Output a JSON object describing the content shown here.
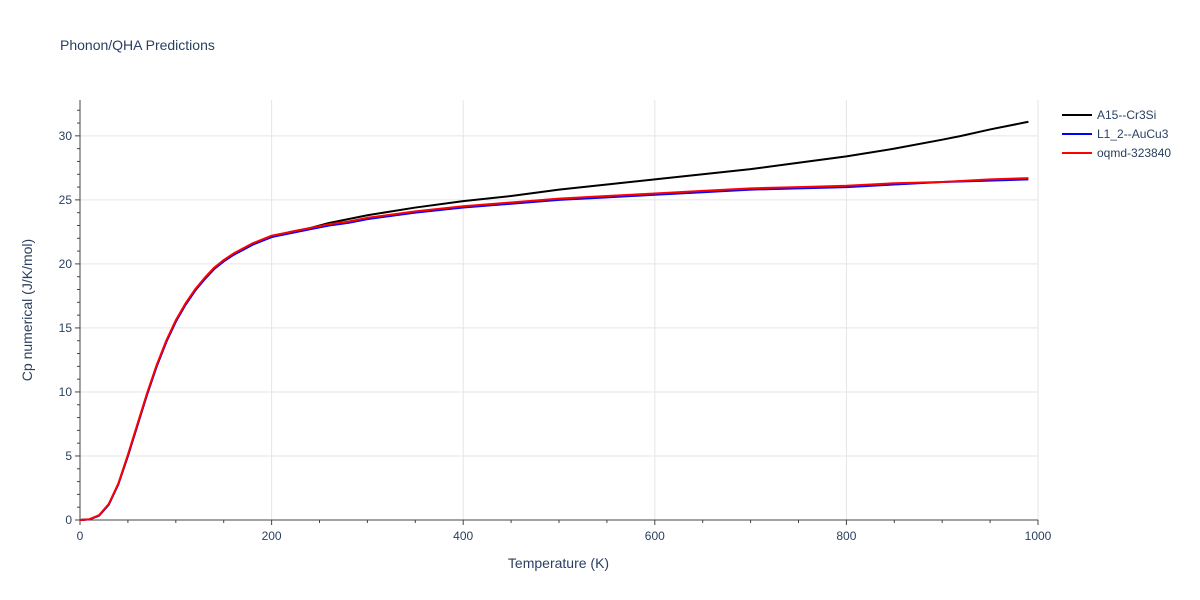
{
  "chart_data": {
    "type": "line",
    "title": "Phonon/QHA Predictions",
    "xlabel": "Temperature (K)",
    "ylabel": "Cp numerical (J/K/mol)",
    "xlim": [
      0,
      1000
    ],
    "ylim": [
      0,
      32.8
    ],
    "xticks": [
      0,
      200,
      400,
      600,
      800,
      1000
    ],
    "yticks": [
      0,
      5,
      10,
      15,
      20,
      25,
      30
    ],
    "grid": true,
    "legend_position": "top-right",
    "series": [
      {
        "name": "A15--Cr3Si",
        "color": "#000000",
        "x": [
          0,
          10,
          20,
          30,
          40,
          50,
          60,
          70,
          80,
          90,
          100,
          110,
          120,
          130,
          140,
          150,
          160,
          170,
          180,
          190,
          200,
          220,
          240,
          260,
          280,
          300,
          350,
          400,
          450,
          500,
          550,
          600,
          650,
          700,
          750,
          800,
          850,
          900,
          920,
          950,
          990
        ],
        "y": [
          0,
          0.05,
          0.35,
          1.2,
          2.8,
          5.0,
          7.4,
          9.8,
          12.0,
          13.9,
          15.5,
          16.8,
          17.9,
          18.8,
          19.6,
          20.2,
          20.7,
          21.1,
          21.5,
          21.8,
          22.1,
          22.5,
          22.8,
          23.2,
          23.5,
          23.8,
          24.4,
          24.9,
          25.3,
          25.8,
          26.2,
          26.6,
          27.0,
          27.4,
          27.9,
          28.4,
          29.0,
          29.7,
          30.0,
          30.5,
          31.1
        ]
      },
      {
        "name": "L1_2--AuCu3",
        "color": "#0000ff",
        "x": [
          0,
          10,
          20,
          30,
          40,
          50,
          60,
          70,
          80,
          90,
          100,
          110,
          120,
          130,
          140,
          150,
          160,
          170,
          180,
          190,
          200,
          220,
          240,
          260,
          280,
          300,
          350,
          400,
          450,
          500,
          550,
          600,
          650,
          700,
          750,
          800,
          850,
          900,
          950,
          990
        ],
        "y": [
          0,
          0.05,
          0.35,
          1.2,
          2.8,
          5.0,
          7.4,
          9.8,
          12.0,
          13.9,
          15.5,
          16.8,
          17.9,
          18.8,
          19.6,
          20.2,
          20.7,
          21.1,
          21.5,
          21.8,
          22.1,
          22.4,
          22.7,
          23.0,
          23.2,
          23.5,
          24.0,
          24.4,
          24.7,
          25.0,
          25.2,
          25.4,
          25.6,
          25.8,
          25.9,
          26.0,
          26.2,
          26.4,
          26.5,
          26.6
        ]
      },
      {
        "name": "oqmd-323840",
        "color": "#ff0000",
        "x": [
          0,
          10,
          20,
          30,
          40,
          50,
          60,
          70,
          80,
          90,
          100,
          110,
          120,
          130,
          140,
          150,
          160,
          170,
          180,
          190,
          200,
          220,
          240,
          260,
          280,
          300,
          350,
          400,
          450,
          500,
          550,
          600,
          650,
          700,
          750,
          800,
          850,
          900,
          950,
          990
        ],
        "y": [
          0,
          0.06,
          0.38,
          1.25,
          2.85,
          5.1,
          7.5,
          9.9,
          12.1,
          14.0,
          15.6,
          16.9,
          18.0,
          18.9,
          19.7,
          20.3,
          20.8,
          21.2,
          21.6,
          21.9,
          22.2,
          22.5,
          22.8,
          23.1,
          23.3,
          23.6,
          24.1,
          24.5,
          24.8,
          25.1,
          25.3,
          25.5,
          25.7,
          25.9,
          26.0,
          26.1,
          26.3,
          26.4,
          26.6,
          26.7
        ]
      }
    ]
  }
}
